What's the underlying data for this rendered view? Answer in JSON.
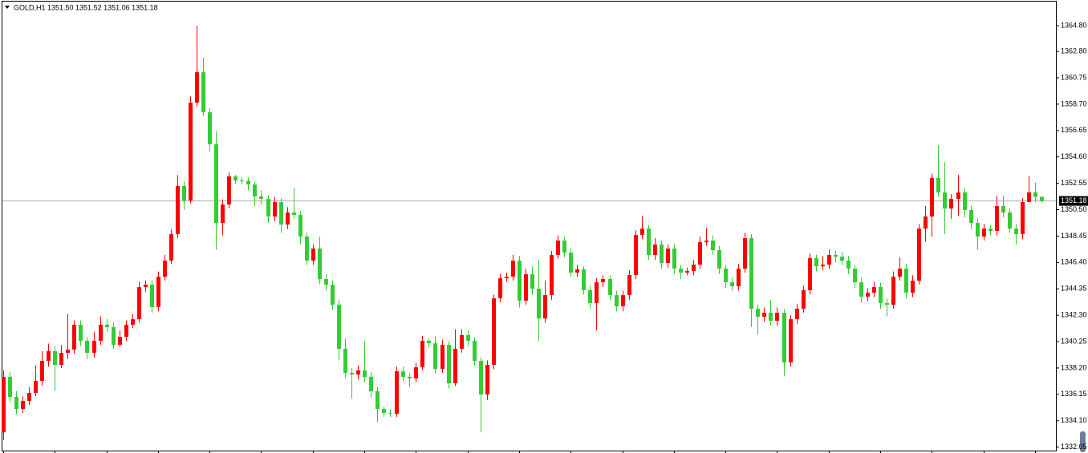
{
  "chart_data": {
    "type": "candlestick",
    "title": "GOLD,H1  1351.50 1351.52 1351.06 1351.18",
    "up_color": "#ff0000",
    "down_color": "#32cd32",
    "last_price": 1351.18,
    "ylim": [
      1331.78,
      1366.67
    ],
    "yticks": [
      {
        "value": 1364.8,
        "label": "1364.80"
      },
      {
        "value": 1362.8,
        "label": "1362.80"
      },
      1360.75,
      {
        "value": 1358.7,
        "label": "1358.70"
      },
      1356.65,
      {
        "value": 1354.6,
        "label": "1354.60"
      },
      1352.55,
      {
        "value": 1350.5,
        "label": "1350.50"
      },
      1348.45,
      {
        "value": 1346.4,
        "label": "1346.40"
      },
      1344.35,
      {
        "value": 1342.3,
        "label": "1342.30"
      },
      1340.25,
      {
        "value": 1338.2,
        "label": "1338.20"
      },
      1336.15,
      {
        "value": 1334.1,
        "label": "1334.10"
      },
      1332.05
    ],
    "open": [
      1333.2,
      1337.51,
      1335.95,
      1335.01,
      1335.64,
      1336.26,
      1337.2,
      1338.75,
      1339.5,
      1338.44,
      1339.38,
      1339.63,
      1341.56,
      1340.31,
      1339.38,
      1340.31,
      1341.56,
      1341.37,
      1340.0,
      1340.62,
      1341.56,
      1341.99,
      1344.48,
      1344.67,
      1342.93,
      1345.29,
      1346.54,
      1348.6,
      1352.34,
      1351.21,
      1358.82,
      1361.18,
      1358.07,
      1355.58,
      1349.47,
      1350.9,
      1353.08,
      1352.77,
      1352.75,
      1352.46,
      1351.53,
      1351.34,
      1349.97,
      1351.09,
      1349.34,
      1350.28,
      1350.09,
      1348.41,
      1346.54,
      1347.48,
      1345.11,
      1344.67,
      1343.11,
      1339.69,
      1337.82,
      1337.69,
      1338.01,
      1337.51,
      1336.39,
      1335.01,
      1334.7,
      1334.64,
      1337.94,
      1337.51,
      1337.38,
      1338.25,
      1340.31,
      1340.12,
      1338.13,
      1340.0,
      1337.01,
      1339.69,
      1340.75,
      1340.31,
      1338.75,
      1336.14,
      1338.44,
      1343.61,
      1345.17,
      1345.29,
      1346.54,
      1343.43,
      1345.48,
      1344.36,
      1342.05,
      1343.86,
      1346.98,
      1348.1,
      1347.16,
      1345.61,
      1345.86,
      1344.24,
      1343.24,
      1344.86,
      1345.11,
      1343.86,
      1342.99,
      1343.86,
      1345.42,
      1348.53,
      1349.03,
      1346.98,
      1347.79,
      1346.35,
      1347.48,
      1345.92,
      1345.61,
      1345.73,
      1346.23,
      1347.97,
      1348.1,
      1347.35,
      1345.92,
      1344.86,
      1344.55,
      1345.92,
      1348.29,
      1342.8,
      1342.18,
      1342.49,
      1341.87,
      1342.49,
      1338.63,
      1341.99,
      1342.8,
      1344.24,
      1346.73,
      1346.1,
      1346.23,
      1346.98,
      1346.85,
      1346.54,
      1345.92,
      1344.86,
      1343.74,
      1344.05,
      1344.49,
      1343.24,
      1343.11,
      1345.29,
      1345.92,
      1344.05,
      1344.98,
      1349.03,
      1349.97,
      1352.96,
      1351.84,
      1350.59,
      1351.34,
      1351.84,
      1350.47,
      1349.47,
      1348.41,
      1349.03,
      1348.85,
      1350.78,
      1350.28,
      1349.03,
      1348.6,
      1351.09,
      1351.84,
      1351.5
    ],
    "high": [
      1338.0,
      1337.9,
      1336.4,
      1336.0,
      1336.7,
      1338.4,
      1339.5,
      1340.1,
      1339.9,
      1340.0,
      1342.4,
      1341.9,
      1341.9,
      1340.6,
      1341.0,
      1342.2,
      1342.0,
      1341.7,
      1341.1,
      1341.9,
      1342.4,
      1344.9,
      1345.0,
      1345.0,
      1345.7,
      1347.0,
      1349.0,
      1353.2,
      1352.7,
      1359.3,
      1364.8,
      1362.3,
      1358.4,
      1356.6,
      1351.3,
      1353.4,
      1353.2,
      1353.0,
      1353.0,
      1352.7,
      1352.0,
      1351.6,
      1351.5,
      1351.4,
      1350.7,
      1352.2,
      1350.4,
      1348.7,
      1347.8,
      1348.4,
      1345.5,
      1345.0,
      1343.5,
      1340.5,
      1338.2,
      1338.4,
      1340.3,
      1337.9,
      1336.7,
      1335.2,
      1335.0,
      1338.3,
      1338.3,
      1337.8,
      1338.6,
      1340.7,
      1340.5,
      1340.7,
      1340.4,
      1340.3,
      1341.2,
      1341.2,
      1341.1,
      1340.6,
      1339.0,
      1338.8,
      1343.9,
      1345.5,
      1345.6,
      1347.0,
      1346.9,
      1345.9,
      1346.1,
      1346.6,
      1345.0,
      1347.3,
      1348.5,
      1348.4,
      1347.5,
      1346.2,
      1346.1,
      1344.6,
      1345.2,
      1345.4,
      1345.4,
      1344.2,
      1344.2,
      1345.8,
      1348.9,
      1350.0,
      1349.3,
      1348.3,
      1348.1,
      1347.8,
      1347.8,
      1346.2,
      1346.0,
      1346.6,
      1348.4,
      1349.1,
      1348.5,
      1347.7,
      1346.2,
      1345.2,
      1346.3,
      1348.7,
      1348.6,
      1343.1,
      1342.9,
      1343.5,
      1342.9,
      1342.8,
      1342.3,
      1343.2,
      1344.6,
      1347.1,
      1347.0,
      1346.9,
      1347.4,
      1347.3,
      1347.2,
      1346.9,
      1346.2,
      1345.2,
      1344.4,
      1344.9,
      1344.8,
      1343.6,
      1345.7,
      1346.8,
      1346.3,
      1345.4,
      1349.4,
      1350.8,
      1353.3,
      1355.5,
      1354.2,
      1351.7,
      1353.2,
      1352.2,
      1350.8,
      1349.8,
      1349.4,
      1349.3,
      1351.6,
      1351.6,
      1350.6,
      1349.4,
      1351.4,
      1353.1,
      1352.6,
      1351.52
    ],
    "low": [
      1332.6,
      1335.5,
      1334.6,
      1334.7,
      1335.3,
      1336.0,
      1336.8,
      1338.3,
      1336.4,
      1338.2,
      1338.9,
      1339.3,
      1339.9,
      1338.9,
      1339.0,
      1340.0,
      1341.0,
      1339.7,
      1339.8,
      1340.3,
      1341.3,
      1341.7,
      1344.1,
      1342.5,
      1342.6,
      1345.0,
      1346.3,
      1348.3,
      1350.5,
      1351.0,
      1358.5,
      1357.8,
      1355.0,
      1347.4,
      1348.5,
      1350.6,
      1352.5,
      1352.5,
      1352.0,
      1350.8,
      1350.9,
      1349.5,
      1349.6,
      1348.7,
      1349.0,
      1349.8,
      1347.8,
      1346.2,
      1346.2,
      1344.7,
      1344.2,
      1342.7,
      1338.8,
      1337.4,
      1335.8,
      1337.3,
      1337.1,
      1335.9,
      1334.0,
      1334.4,
      1334.4,
      1334.4,
      1337.2,
      1336.7,
      1337.1,
      1338.0,
      1339.8,
      1337.8,
      1337.8,
      1336.6,
      1336.8,
      1339.4,
      1339.9,
      1338.4,
      1333.2,
      1335.7,
      1338.1,
      1343.3,
      1344.9,
      1345.0,
      1342.9,
      1343.1,
      1343.9,
      1340.3,
      1341.7,
      1343.5,
      1346.7,
      1346.8,
      1345.3,
      1345.3,
      1343.9,
      1342.8,
      1341.1,
      1344.5,
      1343.5,
      1342.6,
      1342.6,
      1343.5,
      1345.1,
      1348.2,
      1346.6,
      1346.6,
      1345.9,
      1346.0,
      1345.5,
      1345.1,
      1345.4,
      1345.4,
      1345.9,
      1347.7,
      1347.0,
      1345.5,
      1344.4,
      1344.2,
      1344.2,
      1345.6,
      1341.4,
      1340.8,
      1341.8,
      1341.5,
      1341.5,
      1337.6,
      1338.3,
      1341.6,
      1342.5,
      1343.9,
      1345.7,
      1345.8,
      1345.9,
      1346.4,
      1346.2,
      1345.5,
      1344.4,
      1343.3,
      1343.4,
      1343.7,
      1342.8,
      1342.2,
      1342.8,
      1345.0,
      1343.6,
      1343.7,
      1344.7,
      1348.0,
      1348.4,
      1351.5,
      1348.6,
      1349.8,
      1350.0,
      1349.9,
      1349.0,
      1347.4,
      1348.1,
      1348.5,
      1348.5,
      1349.9,
      1348.7,
      1347.8,
      1348.2,
      1351.4,
      1351.1,
      1351.06
    ],
    "close": [
      1337.51,
      1335.95,
      1335.01,
      1335.64,
      1336.26,
      1337.2,
      1338.75,
      1339.5,
      1338.44,
      1339.38,
      1339.63,
      1341.56,
      1340.31,
      1339.38,
      1340.31,
      1341.56,
      1341.37,
      1340.0,
      1340.62,
      1341.56,
      1341.99,
      1344.48,
      1344.67,
      1342.93,
      1345.29,
      1346.54,
      1348.6,
      1352.34,
      1351.21,
      1358.82,
      1361.18,
      1358.07,
      1355.58,
      1349.47,
      1350.9,
      1353.08,
      1352.77,
      1352.75,
      1352.46,
      1351.53,
      1351.34,
      1349.97,
      1351.09,
      1349.34,
      1350.28,
      1350.09,
      1348.41,
      1346.54,
      1347.48,
      1345.11,
      1344.67,
      1343.11,
      1339.69,
      1337.82,
      1337.69,
      1338.01,
      1337.51,
      1336.39,
      1335.01,
      1334.7,
      1334.64,
      1337.94,
      1337.51,
      1337.38,
      1338.25,
      1340.31,
      1340.12,
      1338.13,
      1340.0,
      1337.01,
      1339.69,
      1340.75,
      1340.31,
      1338.75,
      1336.14,
      1338.44,
      1343.61,
      1345.17,
      1345.29,
      1346.54,
      1343.43,
      1345.48,
      1344.36,
      1342.05,
      1343.86,
      1346.98,
      1348.1,
      1347.16,
      1345.61,
      1345.86,
      1344.24,
      1343.24,
      1344.86,
      1345.11,
      1343.86,
      1342.99,
      1343.86,
      1345.42,
      1348.53,
      1349.03,
      1346.98,
      1347.79,
      1346.35,
      1347.48,
      1345.92,
      1345.61,
      1345.73,
      1346.23,
      1347.97,
      1348.1,
      1347.35,
      1345.92,
      1344.86,
      1344.55,
      1345.92,
      1348.29,
      1342.8,
      1342.18,
      1342.49,
      1341.87,
      1342.49,
      1338.63,
      1341.99,
      1342.8,
      1344.24,
      1346.73,
      1346.1,
      1346.23,
      1346.98,
      1346.85,
      1346.54,
      1345.92,
      1344.86,
      1343.74,
      1344.05,
      1344.49,
      1343.24,
      1343.11,
      1345.29,
      1345.92,
      1344.05,
      1344.98,
      1349.03,
      1349.97,
      1352.96,
      1351.84,
      1350.59,
      1351.34,
      1351.84,
      1350.47,
      1349.47,
      1348.41,
      1349.03,
      1348.85,
      1350.78,
      1350.28,
      1349.03,
      1348.6,
      1351.09,
      1351.84,
      1351.5,
      1351.18
    ]
  }
}
